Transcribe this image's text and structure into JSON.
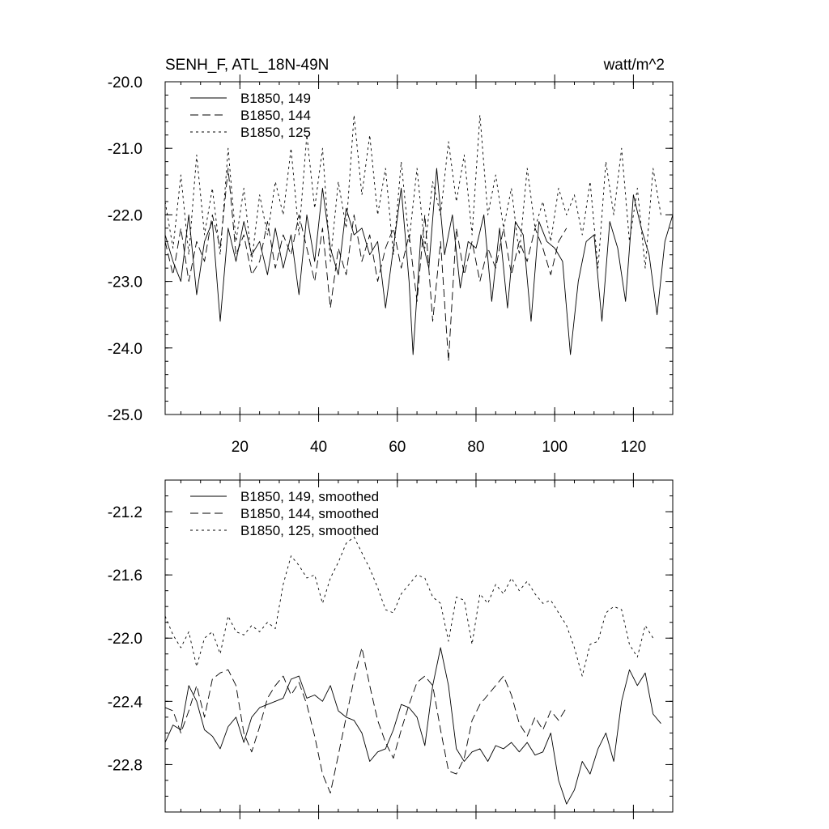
{
  "chart_data": [
    {
      "type": "line",
      "title": "SENH_F, ATL_18N-49N",
      "units": "watt/m^2",
      "xlim": [
        1,
        130
      ],
      "ylim": [
        -25.0,
        -20.0
      ],
      "xticks": [
        20,
        40,
        60,
        80,
        100,
        120
      ],
      "xticklabels": [
        "20",
        "40",
        "60",
        "80",
        "100",
        "120"
      ],
      "yticks": [
        -25.0,
        -24.0,
        -23.0,
        -22.0,
        -21.0,
        -20.0
      ],
      "yticklabels": [
        "-25.0",
        "-24.0",
        "-23.0",
        "-22.0",
        "-21.0",
        "-20.0"
      ],
      "legend_position": "top-left",
      "series": [
        {
          "name": "B1850, 149",
          "style": "solid",
          "x": [
            1,
            3,
            5,
            7,
            9,
            11,
            13,
            15,
            17,
            19,
            21,
            23,
            25,
            27,
            29,
            31,
            33,
            35,
            37,
            39,
            41,
            43,
            45,
            47,
            49,
            51,
            53,
            55,
            57,
            59,
            61,
            63,
            64,
            66,
            68,
            70,
            72,
            74,
            76,
            78,
            80,
            82,
            84,
            86,
            88,
            90,
            92,
            94,
            96,
            98,
            100,
            102,
            104,
            106,
            108,
            110,
            112,
            114,
            116,
            118,
            120,
            122,
            124,
            126,
            128,
            130
          ],
          "values": [
            -22.3,
            -22.7,
            -23.0,
            -22.0,
            -23.2,
            -22.4,
            -22.1,
            -23.6,
            -22.2,
            -22.7,
            -22.1,
            -22.6,
            -22.4,
            -22.9,
            -22.2,
            -22.8,
            -22.3,
            -23.2,
            -22.0,
            -22.7,
            -21.6,
            -22.5,
            -22.9,
            -21.9,
            -22.3,
            -22.2,
            -22.6,
            -22.4,
            -23.4,
            -22.5,
            -21.6,
            -23.0,
            -24.1,
            -22.3,
            -22.8,
            -21.3,
            -22.6,
            -22.0,
            -23.1,
            -22.4,
            -22.5,
            -22.0,
            -23.3,
            -22.2,
            -23.4,
            -22.1,
            -22.3,
            -23.6,
            -22.1,
            -22.4,
            -22.5,
            -22.7,
            -24.1,
            -23.0,
            -22.4,
            -22.3,
            -23.6,
            -22.1,
            -22.5,
            -23.3,
            -21.7,
            -22.2,
            -22.6,
            -23.5,
            -22.4,
            -22.0
          ]
        },
        {
          "name": "B1850, 144",
          "style": "dashed",
          "x": [
            1,
            3,
            5,
            7,
            9,
            11,
            13,
            15,
            17,
            19,
            21,
            23,
            25,
            27,
            29,
            31,
            33,
            35,
            37,
            39,
            41,
            43,
            45,
            47,
            49,
            51,
            53,
            55,
            57,
            59,
            61,
            63,
            65,
            67,
            69,
            71,
            73,
            75,
            77,
            79,
            81,
            83,
            85,
            87,
            89,
            91,
            93,
            95,
            97,
            99,
            101,
            103
          ],
          "values": [
            -22.4,
            -22.9,
            -22.2,
            -23.0,
            -22.4,
            -22.7,
            -22.0,
            -22.5,
            -21.3,
            -22.6,
            -22.3,
            -22.9,
            -22.7,
            -22.1,
            -22.8,
            -22.3,
            -22.6,
            -22.0,
            -22.5,
            -23.0,
            -22.2,
            -23.4,
            -22.5,
            -22.9,
            -22.0,
            -22.7,
            -22.3,
            -23.0,
            -22.5,
            -22.2,
            -22.8,
            -22.3,
            -23.3,
            -22.0,
            -23.6,
            -22.4,
            -24.2,
            -22.2,
            -22.9,
            -22.4,
            -23.0,
            -22.5,
            -22.8,
            -22.2,
            -22.9,
            -22.4,
            -22.7,
            -22.2,
            -22.5,
            -22.9,
            -22.4,
            -22.2
          ]
        },
        {
          "name": "B1850, 125",
          "style": "dotted",
          "x": [
            1,
            3,
            5,
            7,
            9,
            11,
            13,
            15,
            17,
            19,
            21,
            23,
            25,
            27,
            29,
            31,
            33,
            35,
            37,
            39,
            41,
            43,
            45,
            47,
            49,
            51,
            53,
            55,
            57,
            59,
            61,
            63,
            65,
            67,
            69,
            71,
            73,
            75,
            77,
            79,
            81,
            83,
            85,
            87,
            89,
            91,
            93,
            95,
            97,
            99,
            101,
            103,
            105,
            107,
            109,
            111,
            113,
            115,
            117,
            119,
            121,
            123,
            125,
            127
          ],
          "values": [
            -21.8,
            -22.5,
            -21.4,
            -22.6,
            -21.1,
            -22.3,
            -21.6,
            -22.6,
            -21.0,
            -22.4,
            -21.6,
            -22.7,
            -21.7,
            -22.3,
            -21.5,
            -22.0,
            -21.0,
            -22.3,
            -20.8,
            -21.9,
            -21.0,
            -22.7,
            -21.5,
            -22.2,
            -20.5,
            -21.7,
            -20.8,
            -22.0,
            -21.3,
            -22.6,
            -21.2,
            -22.4,
            -21.3,
            -22.5,
            -21.5,
            -22.0,
            -20.9,
            -21.8,
            -21.1,
            -22.3,
            -20.5,
            -22.0,
            -21.4,
            -22.2,
            -21.6,
            -22.6,
            -21.3,
            -22.2,
            -21.8,
            -22.4,
            -21.6,
            -22.0,
            -21.7,
            -22.3,
            -21.5,
            -22.8,
            -21.2,
            -22.0,
            -21.0,
            -22.4,
            -21.6,
            -22.8,
            -21.3,
            -22.0
          ]
        }
      ]
    },
    {
      "type": "line",
      "title": "",
      "xlim": [
        1,
        130
      ],
      "ylim": [
        -23.1,
        -21.0
      ],
      "xticks": [
        20,
        40,
        60,
        80,
        100,
        120
      ],
      "xticklabels": [],
      "yticks": [
        -22.8,
        -22.4,
        -22.0,
        -21.6,
        -21.2
      ],
      "yticklabels": [
        "-22.8",
        "-22.4",
        "-22.0",
        "-21.6",
        "-21.2"
      ],
      "legend_position": "top-left",
      "series": [
        {
          "name": "B1850, 149, smoothed",
          "style": "solid",
          "x": [
            1,
            3,
            5,
            7,
            9,
            11,
            13,
            15,
            17,
            19,
            21,
            23,
            25,
            27,
            29,
            31,
            33,
            35,
            37,
            39,
            41,
            43,
            45,
            47,
            49,
            51,
            53,
            55,
            57,
            59,
            61,
            63,
            65,
            67,
            69,
            71,
            73,
            75,
            77,
            79,
            81,
            83,
            85,
            87,
            89,
            91,
            93,
            95,
            97,
            99,
            101,
            103,
            105,
            107,
            109,
            111,
            113,
            115,
            117,
            119,
            121,
            123,
            125,
            127
          ],
          "values": [
            -22.66,
            -22.55,
            -22.58,
            -22.3,
            -22.4,
            -22.58,
            -22.62,
            -22.7,
            -22.56,
            -22.5,
            -22.66,
            -22.5,
            -22.44,
            -22.42,
            -22.4,
            -22.38,
            -22.26,
            -22.24,
            -22.38,
            -22.36,
            -22.4,
            -22.3,
            -22.46,
            -22.5,
            -22.52,
            -22.6,
            -22.78,
            -22.72,
            -22.7,
            -22.58,
            -22.42,
            -22.44,
            -22.5,
            -22.68,
            -22.3,
            -22.06,
            -22.3,
            -22.7,
            -22.78,
            -22.72,
            -22.7,
            -22.78,
            -22.68,
            -22.7,
            -22.66,
            -22.72,
            -22.66,
            -22.74,
            -22.72,
            -22.6,
            -22.9,
            -23.05,
            -22.96,
            -22.78,
            -22.86,
            -22.7,
            -22.6,
            -22.78,
            -22.4,
            -22.2,
            -22.3,
            -22.22,
            -22.48,
            -22.54
          ]
        },
        {
          "name": "B1850, 144, smoothed",
          "style": "dashed",
          "x": [
            1,
            3,
            5,
            7,
            9,
            11,
            13,
            15,
            17,
            19,
            21,
            23,
            25,
            27,
            29,
            31,
            33,
            35,
            37,
            39,
            41,
            43,
            45,
            47,
            49,
            51,
            53,
            55,
            57,
            59,
            61,
            63,
            65,
            67,
            69,
            71,
            73,
            75,
            77,
            79,
            81,
            83,
            85,
            87,
            89,
            91,
            93,
            95,
            97,
            99,
            101,
            103
          ],
          "values": [
            -22.44,
            -22.46,
            -22.6,
            -22.46,
            -22.3,
            -22.5,
            -22.26,
            -22.22,
            -22.2,
            -22.3,
            -22.6,
            -22.72,
            -22.56,
            -22.38,
            -22.3,
            -22.24,
            -22.36,
            -22.28,
            -22.42,
            -22.62,
            -22.86,
            -22.98,
            -22.74,
            -22.5,
            -22.26,
            -22.06,
            -22.3,
            -22.52,
            -22.66,
            -22.76,
            -22.58,
            -22.42,
            -22.28,
            -22.24,
            -22.3,
            -22.58,
            -22.84,
            -22.86,
            -22.76,
            -22.52,
            -22.42,
            -22.36,
            -22.3,
            -22.24,
            -22.36,
            -22.54,
            -22.62,
            -22.5,
            -22.58,
            -22.46,
            -22.52,
            -22.44
          ]
        },
        {
          "name": "B1850, 125, smoothed",
          "style": "dotted",
          "x": [
            1,
            3,
            5,
            7,
            9,
            11,
            13,
            15,
            17,
            19,
            21,
            23,
            25,
            27,
            29,
            31,
            33,
            35,
            37,
            39,
            41,
            43,
            45,
            47,
            49,
            51,
            53,
            55,
            57,
            59,
            61,
            63,
            65,
            67,
            69,
            71,
            73,
            75,
            77,
            79,
            81,
            83,
            85,
            87,
            89,
            91,
            93,
            95,
            97,
            99,
            101,
            103,
            105,
            107,
            109,
            111,
            113,
            115,
            117,
            119,
            121,
            123,
            125
          ],
          "values": [
            -21.86,
            -21.98,
            -22.06,
            -21.96,
            -22.18,
            -22.0,
            -21.96,
            -22.1,
            -21.86,
            -21.96,
            -21.98,
            -21.92,
            -21.96,
            -21.9,
            -21.94,
            -21.66,
            -21.48,
            -21.54,
            -21.62,
            -21.6,
            -21.78,
            -21.62,
            -21.52,
            -21.4,
            -21.36,
            -21.46,
            -21.56,
            -21.68,
            -21.82,
            -21.84,
            -21.72,
            -21.66,
            -21.6,
            -21.62,
            -21.74,
            -21.78,
            -22.02,
            -21.74,
            -21.76,
            -22.04,
            -21.72,
            -21.78,
            -21.66,
            -21.72,
            -21.62,
            -21.7,
            -21.64,
            -21.72,
            -21.78,
            -21.76,
            -21.84,
            -21.92,
            -22.06,
            -22.24,
            -22.04,
            -22.02,
            -21.84,
            -21.8,
            -21.82,
            -22.04,
            -22.12,
            -21.92,
            -22.0
          ]
        }
      ]
    }
  ]
}
